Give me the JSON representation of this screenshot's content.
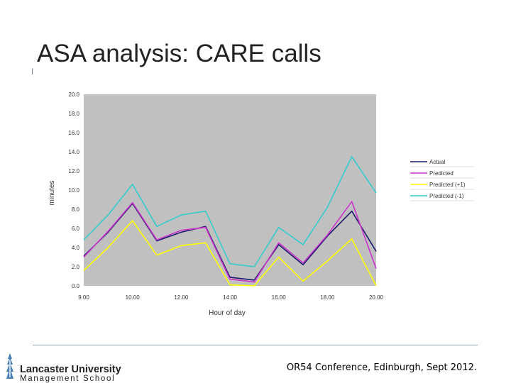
{
  "slide": {
    "title": "ASA analysis: CARE calls",
    "footer": "OR54 Conference, Edinburgh, Sept 2012.",
    "logo": {
      "line1": "Lancaster University",
      "line2": "Management School",
      "icon": "lancaster-university-logo-icon"
    }
  },
  "chart_data": {
    "type": "line",
    "title": "",
    "xlabel": "Hour of day",
    "ylabel": "minutes",
    "x": [
      9,
      10,
      11,
      12,
      13,
      14,
      15,
      16,
      17,
      18,
      19,
      20
    ],
    "xticks": [
      {
        "value": 9,
        "label": "9.00"
      },
      {
        "value": 11,
        "label": "10.00"
      },
      {
        "value": 13,
        "label": "12.00"
      },
      {
        "value": 15,
        "label": "14.00"
      },
      {
        "value": 17,
        "label": "16.00"
      },
      {
        "value": 19,
        "label": "18.00"
      },
      {
        "value": 21,
        "label": "20.00"
      }
    ],
    "xlim": [
      9,
      21
    ],
    "ylim": [
      0,
      20
    ],
    "yticks": [
      "0.0",
      "2.0",
      "4.0",
      "6.0",
      "8.0",
      "10.0",
      "12.0",
      "14.0",
      "16.0",
      "18.0",
      "20.0"
    ],
    "grid": false,
    "plot_background": "#c0c0c0",
    "legend_position": "right",
    "series": [
      {
        "name": "Actual",
        "color": "#1a1a6e",
        "x": [
          9,
          10,
          11,
          12,
          13,
          14,
          15,
          16,
          17,
          18,
          19,
          20,
          21
        ],
        "values": [
          3.1,
          5.6,
          8.6,
          4.7,
          5.6,
          6.2,
          0.9,
          0.6,
          4.3,
          2.2,
          5.2,
          7.8,
          3.6
        ]
      },
      {
        "name": "Predicted",
        "color": "#cc33cc",
        "x": [
          9,
          10,
          11,
          12,
          13,
          14,
          15,
          16,
          17,
          18,
          19,
          20,
          21
        ],
        "values": [
          3.0,
          5.7,
          8.7,
          4.8,
          5.8,
          6.1,
          0.7,
          0.4,
          4.5,
          2.4,
          5.3,
          8.8,
          1.8
        ]
      },
      {
        "name": "Predicted (+1)",
        "color": "#ffff00",
        "x": [
          9,
          10,
          11,
          12,
          13,
          14,
          15,
          16,
          17,
          18,
          19,
          20,
          21
        ],
        "values": [
          1.6,
          4.0,
          6.8,
          3.2,
          4.2,
          4.5,
          0.1,
          0.0,
          3.0,
          0.5,
          2.6,
          4.9,
          0.0
        ]
      },
      {
        "name": "Predicted (-1)",
        "color": "#33cccc",
        "x": [
          9,
          10,
          11,
          12,
          13,
          14,
          15,
          16,
          17,
          18,
          19,
          20,
          21
        ],
        "values": [
          4.8,
          7.4,
          10.6,
          6.2,
          7.4,
          7.8,
          2.3,
          2.0,
          6.1,
          4.3,
          8.2,
          13.5,
          9.7
        ]
      }
    ]
  }
}
